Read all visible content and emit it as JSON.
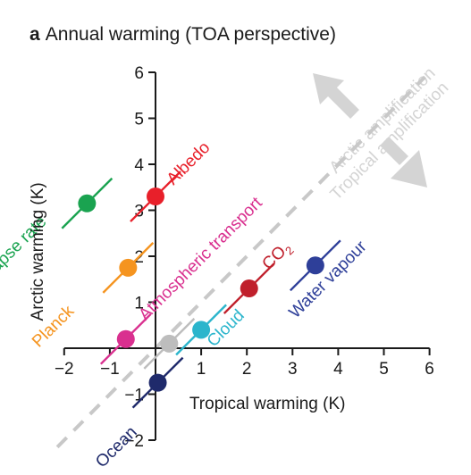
{
  "panel": {
    "letter": "a",
    "title": "Annual warming (TOA perspective)"
  },
  "chart_data": {
    "type": "scatter",
    "xlabel": "Tropical warming (K)",
    "ylabel": "Arctic warming (K)",
    "xlim": [
      -2,
      6
    ],
    "ylim": [
      -2,
      6
    ],
    "xticks": [
      -2,
      -1,
      0,
      1,
      2,
      3,
      4,
      5,
      6
    ],
    "yticks": [
      -2,
      -1,
      0,
      1,
      2,
      3,
      4,
      5,
      6
    ],
    "grid": false,
    "reference_line": {
      "slope": 1,
      "intercept": 0,
      "style": "dashed",
      "color": "#c8c8c8"
    },
    "points": [
      {
        "label": "Lapse rate",
        "x": -1.5,
        "y": 3.15,
        "color": "#1aa350"
      },
      {
        "label": "Albedo",
        "x": 0.0,
        "y": 3.3,
        "color": "#e8202a"
      },
      {
        "label": "Planck",
        "x": -0.6,
        "y": 1.75,
        "color": "#f5941f"
      },
      {
        "label": "Atmospheric transport",
        "x": -0.65,
        "y": 0.2,
        "color": "#d9308f"
      },
      {
        "label": "",
        "x": 0.3,
        "y": 0.1,
        "color": "#bdbdbd"
      },
      {
        "label": "Cloud",
        "x": 1.0,
        "y": 0.4,
        "color": "#2bb5cc"
      },
      {
        "label": "CO",
        "label_sub": "2",
        "x": 2.05,
        "y": 1.3,
        "color": "#c0202c"
      },
      {
        "label": "Water vapour",
        "x": 3.5,
        "y": 1.8,
        "color": "#2e3f99"
      },
      {
        "label": "Ocean",
        "x": 0.05,
        "y": -0.75,
        "color": "#1f2a6b"
      }
    ],
    "annotations": [
      {
        "text": "Arctic amplification",
        "direction": "up-left",
        "color": "#d4d4d4"
      },
      {
        "text": "Tropical amplification",
        "direction": "down-right",
        "color": "#d4d4d4"
      }
    ]
  }
}
